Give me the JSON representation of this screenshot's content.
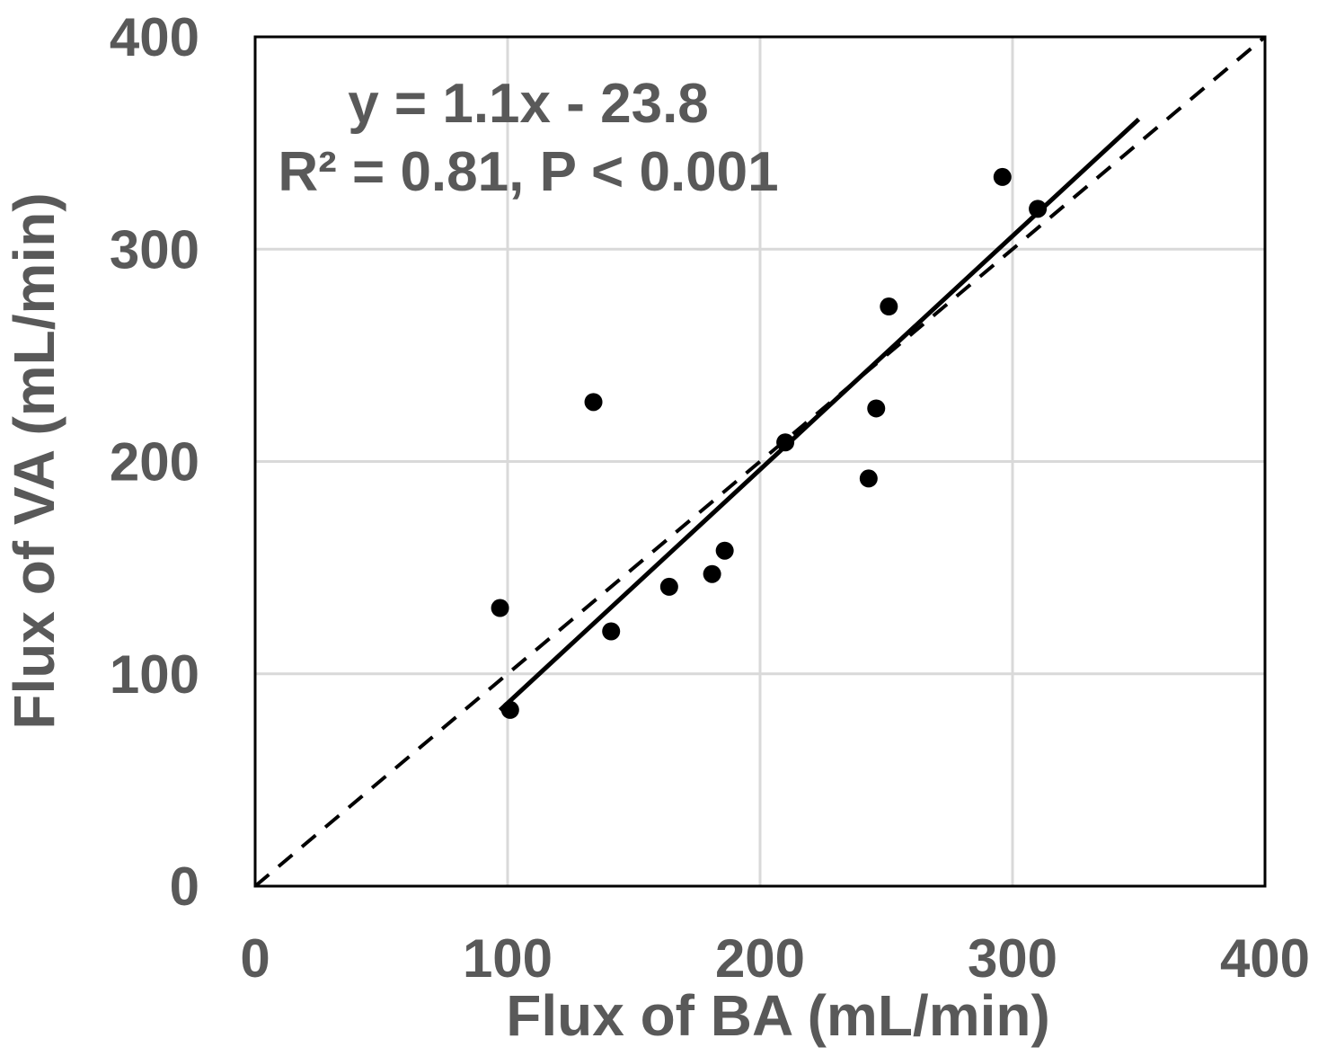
{
  "chart_data": {
    "type": "scatter",
    "title": "",
    "xlabel": "Flux of BA (mL/min)",
    "ylabel": "Flux of VA (mL/min)",
    "xlim": [
      0,
      400
    ],
    "ylim": [
      0,
      400
    ],
    "xticks": [
      "0",
      "100",
      "200",
      "300",
      "400"
    ],
    "yticks": [
      "0",
      "100",
      "200",
      "300",
      "400"
    ],
    "grid": true,
    "points": [
      {
        "x": 97,
        "y": 131
      },
      {
        "x": 101,
        "y": 83
      },
      {
        "x": 134,
        "y": 228
      },
      {
        "x": 141,
        "y": 120
      },
      {
        "x": 164,
        "y": 141
      },
      {
        "x": 181,
        "y": 147
      },
      {
        "x": 186,
        "y": 158
      },
      {
        "x": 210,
        "y": 209
      },
      {
        "x": 243,
        "y": 192
      },
      {
        "x": 246,
        "y": 225
      },
      {
        "x": 251,
        "y": 273
      },
      {
        "x": 296,
        "y": 334
      },
      {
        "x": 310,
        "y": 319
      }
    ],
    "regression_line": {
      "slope": 1.1,
      "intercept": -23.8,
      "x_range": [
        97,
        350
      ],
      "style": "solid"
    },
    "identity_line": {
      "x_range": [
        0,
        400
      ],
      "style": "dashed"
    },
    "annotations": [
      "y = 1.1x - 23.8",
      "R² = 0.81, P < 0.001"
    ],
    "colors": {
      "points": "#000000",
      "text": "#595959",
      "grid": "#d9d9d9",
      "frame": "#000000"
    }
  }
}
